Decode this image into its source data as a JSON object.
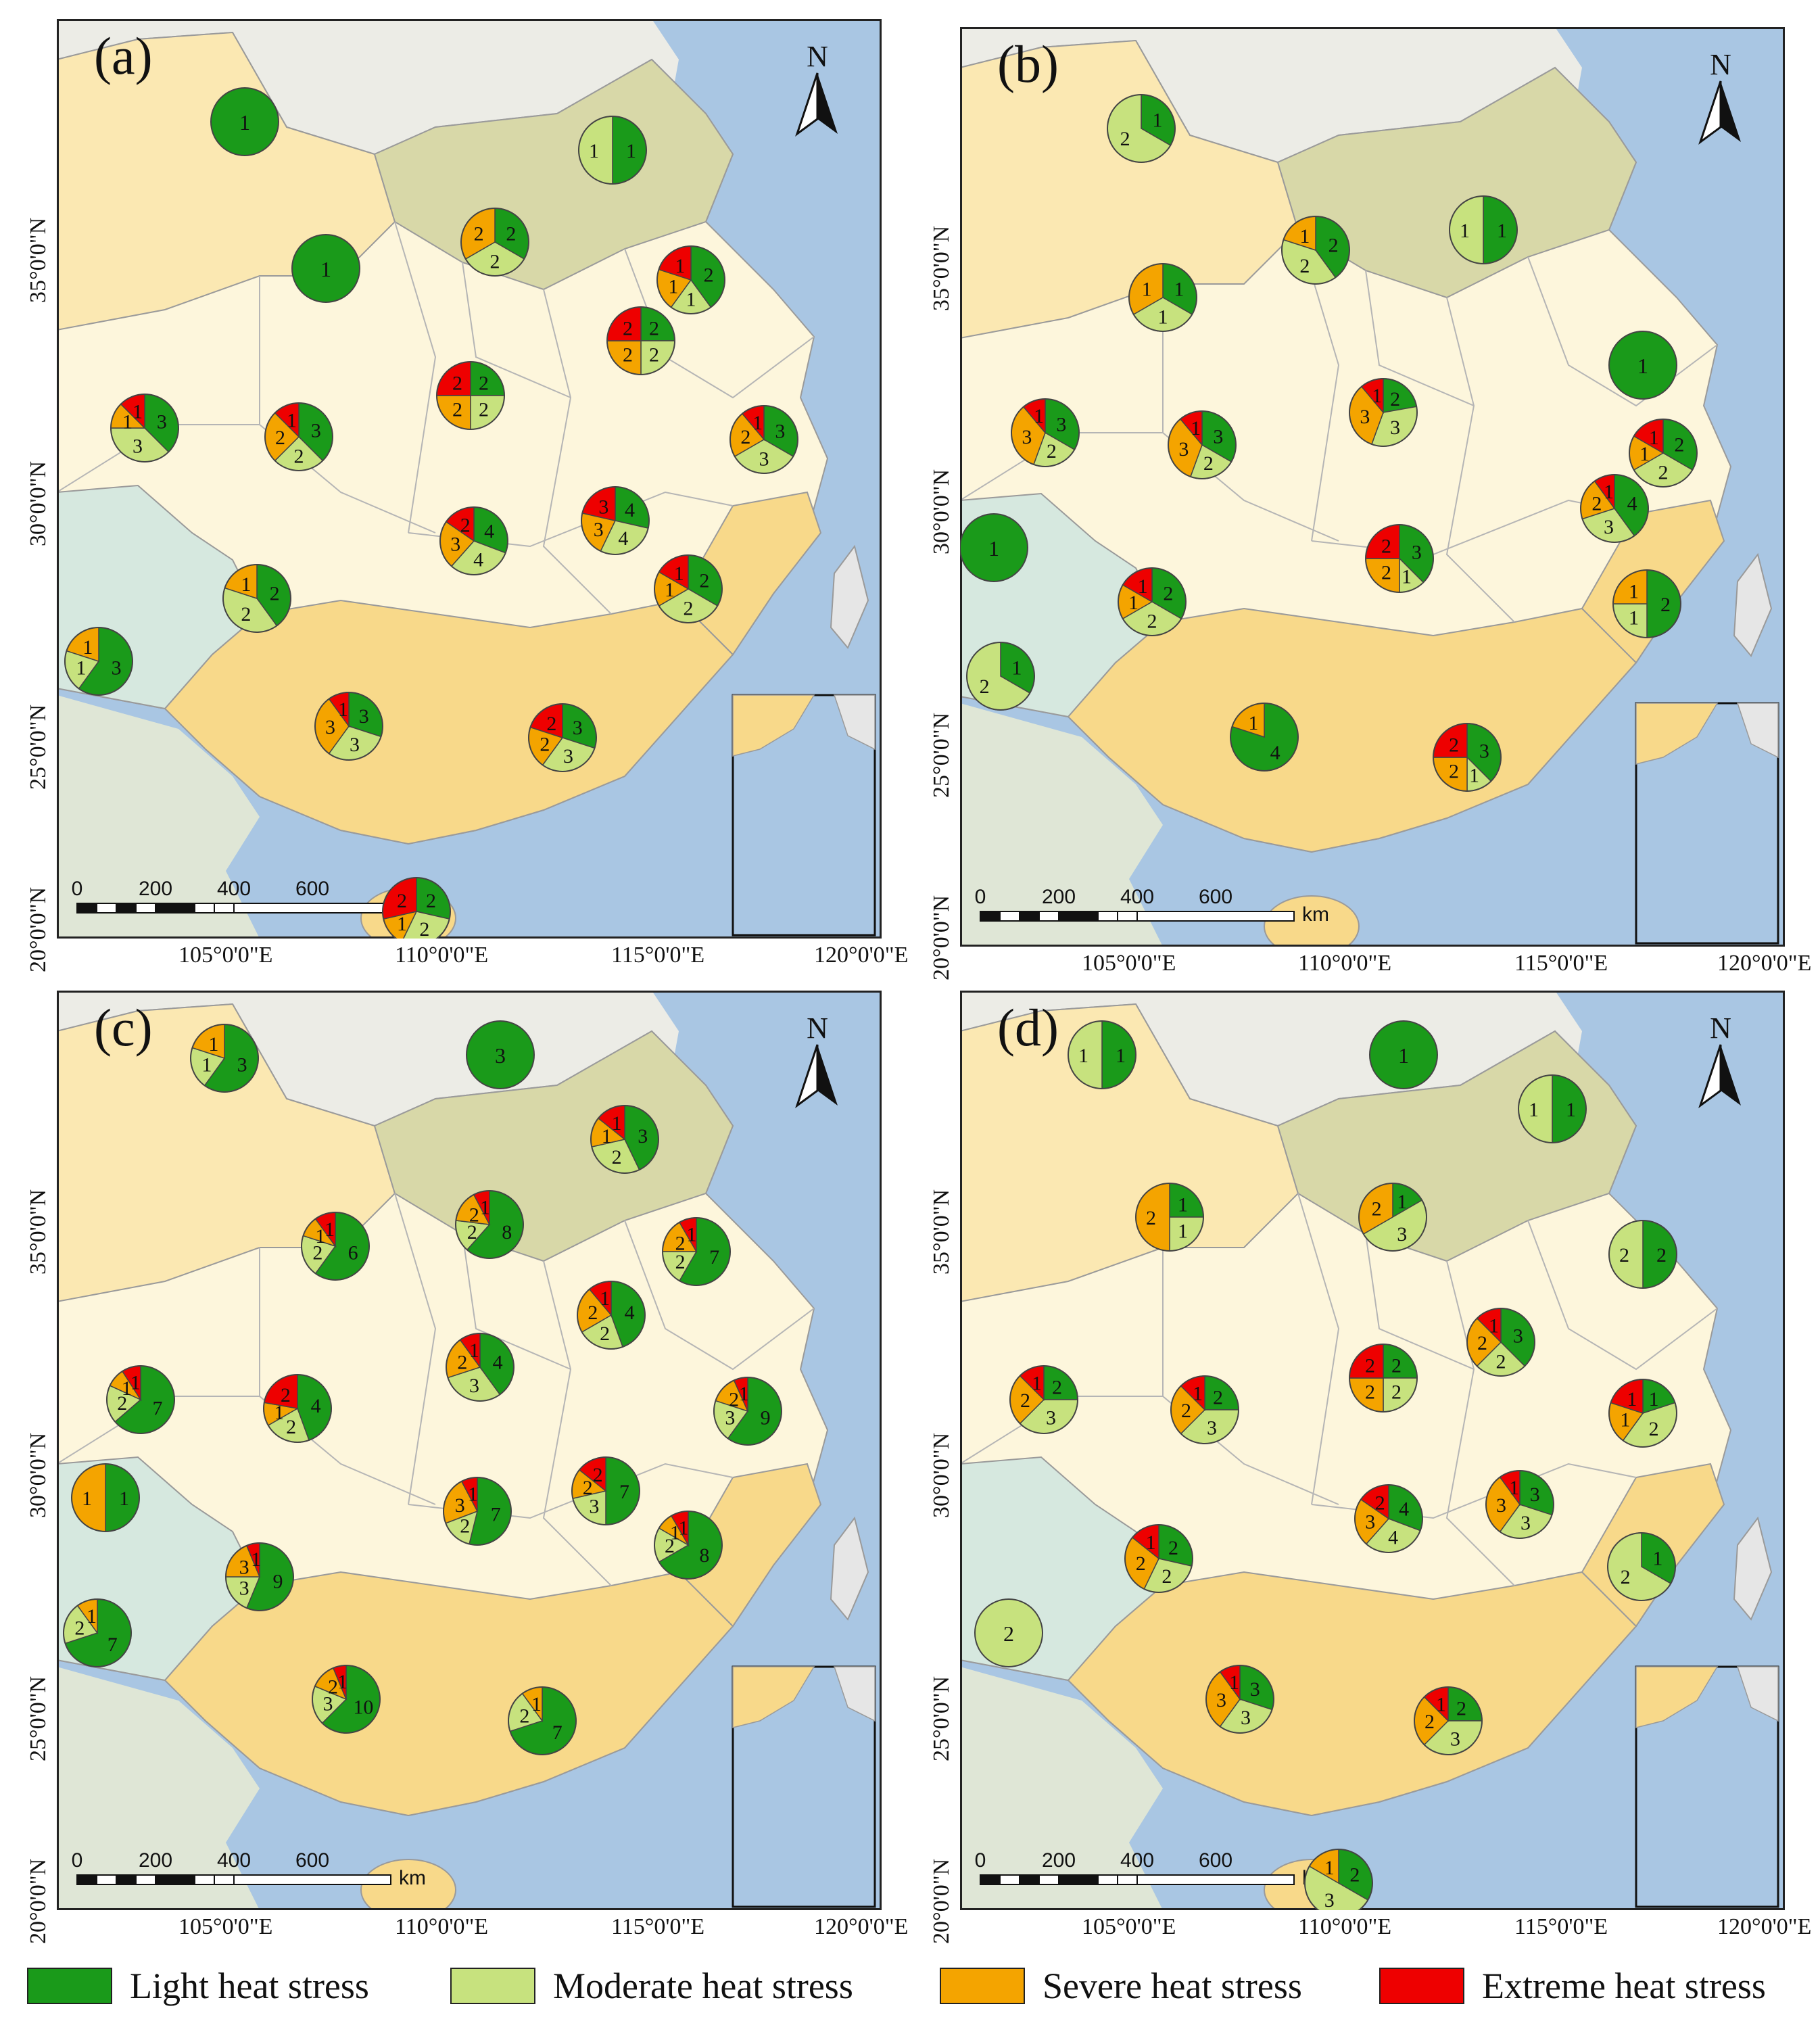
{
  "legend": [
    {
      "label": "Light heat stress",
      "color": "#1a9a1a"
    },
    {
      "label": "Moderate heat stress",
      "color": "#c7e27e"
    },
    {
      "label": "Severe heat stress",
      "color": "#f4a400"
    },
    {
      "label": "Extreme heat stress",
      "color": "#ee0000"
    }
  ],
  "north_label": "N",
  "scale": {
    "ticks": [
      "0",
      "200",
      "400",
      "600"
    ],
    "unit": "km"
  },
  "lat_labels": [
    "35°0'0\"N",
    "30°0'0\"N",
    "25°0'0\"N",
    "20°0'0\"N"
  ],
  "lon_labels": [
    "105°0'0\"E",
    "110°0'0\"E",
    "115°0'0\"E",
    "120°0'0\"E"
  ],
  "panels": [
    {
      "label": "(a)",
      "pies": [
        [
          1,
          0,
          0,
          0
        ],
        [
          1,
          1,
          0,
          0
        ],
        [
          1,
          0,
          0,
          0
        ],
        [
          2,
          2,
          2,
          0
        ],
        [
          2,
          1,
          1,
          1
        ],
        [
          2,
          2,
          2,
          2
        ],
        [
          3,
          3,
          1,
          1
        ],
        [
          3,
          2,
          2,
          1
        ],
        [
          2,
          2,
          2,
          2
        ],
        [
          3,
          3,
          2,
          1
        ],
        [
          4,
          4,
          3,
          2
        ],
        [
          4,
          4,
          3,
          3
        ],
        [
          2,
          2,
          1,
          1
        ],
        [
          2,
          2,
          1,
          0
        ],
        [
          3,
          1,
          1,
          0
        ],
        [
          3,
          3,
          3,
          1
        ],
        [
          3,
          3,
          2,
          2
        ],
        [
          2,
          2,
          1,
          2
        ]
      ]
    },
    {
      "label": "(b)",
      "pies": [
        [
          1,
          2,
          0,
          0
        ],
        [
          1,
          1,
          0,
          0
        ],
        [
          1,
          1,
          1,
          0
        ],
        [
          2,
          2,
          1,
          0
        ],
        [
          1,
          0,
          0,
          0
        ],
        [
          2,
          2,
          1,
          1
        ],
        [
          3,
          2,
          3,
          1
        ],
        [
          3,
          2,
          3,
          1
        ],
        [
          2,
          3,
          3,
          1
        ],
        [
          4,
          3,
          2,
          1
        ],
        [
          2,
          1,
          1,
          0
        ],
        [
          1,
          0,
          0,
          0
        ],
        [
          1,
          2,
          0,
          0
        ],
        [
          2,
          2,
          1,
          1
        ],
        [
          3,
          1,
          2,
          2
        ],
        [
          3,
          1,
          2,
          2
        ],
        [
          4,
          0,
          1,
          0
        ]
      ]
    },
    {
      "label": "(c)",
      "pies": [
        [
          3,
          1,
          1,
          0
        ],
        [
          3,
          0,
          0,
          0
        ],
        [
          3,
          2,
          1,
          1
        ],
        [
          6,
          2,
          1,
          1
        ],
        [
          8,
          2,
          2,
          1
        ],
        [
          7,
          2,
          2,
          1
        ],
        [
          4,
          2,
          2,
          1
        ],
        [
          7,
          2,
          1,
          1
        ],
        [
          4,
          2,
          1,
          2
        ],
        [
          4,
          3,
          2,
          1
        ],
        [
          9,
          3,
          2,
          1
        ],
        [
          7,
          3,
          2,
          2
        ],
        [
          7,
          2,
          3,
          1
        ],
        [
          9,
          3,
          3,
          1
        ],
        [
          8,
          2,
          1,
          1
        ],
        [
          1,
          0,
          1,
          0
        ],
        [
          7,
          2,
          1,
          0
        ],
        [
          10,
          3,
          2,
          1
        ],
        [
          7,
          2,
          1,
          0
        ]
      ]
    },
    {
      "label": "(d)",
      "pies": [
        [
          1,
          1,
          0,
          0
        ],
        [
          1,
          0,
          0,
          0
        ],
        [
          1,
          1,
          0,
          0
        ],
        [
          1,
          1,
          2,
          0
        ],
        [
          1,
          3,
          2,
          0
        ],
        [
          2,
          2,
          0,
          0
        ],
        [
          3,
          2,
          2,
          1
        ],
        [
          2,
          3,
          2,
          1
        ],
        [
          2,
          3,
          2,
          1
        ],
        [
          2,
          2,
          2,
          2
        ],
        [
          1,
          2,
          1,
          1
        ],
        [
          4,
          4,
          3,
          2
        ],
        [
          3,
          3,
          3,
          1
        ],
        [
          1,
          2,
          0,
          0
        ],
        [
          2,
          2,
          2,
          1
        ],
        [
          0,
          2,
          0,
          0
        ],
        [
          3,
          3,
          3,
          1
        ],
        [
          2,
          3,
          2,
          1
        ],
        [
          2,
          3,
          1,
          0
        ]
      ]
    }
  ]
}
